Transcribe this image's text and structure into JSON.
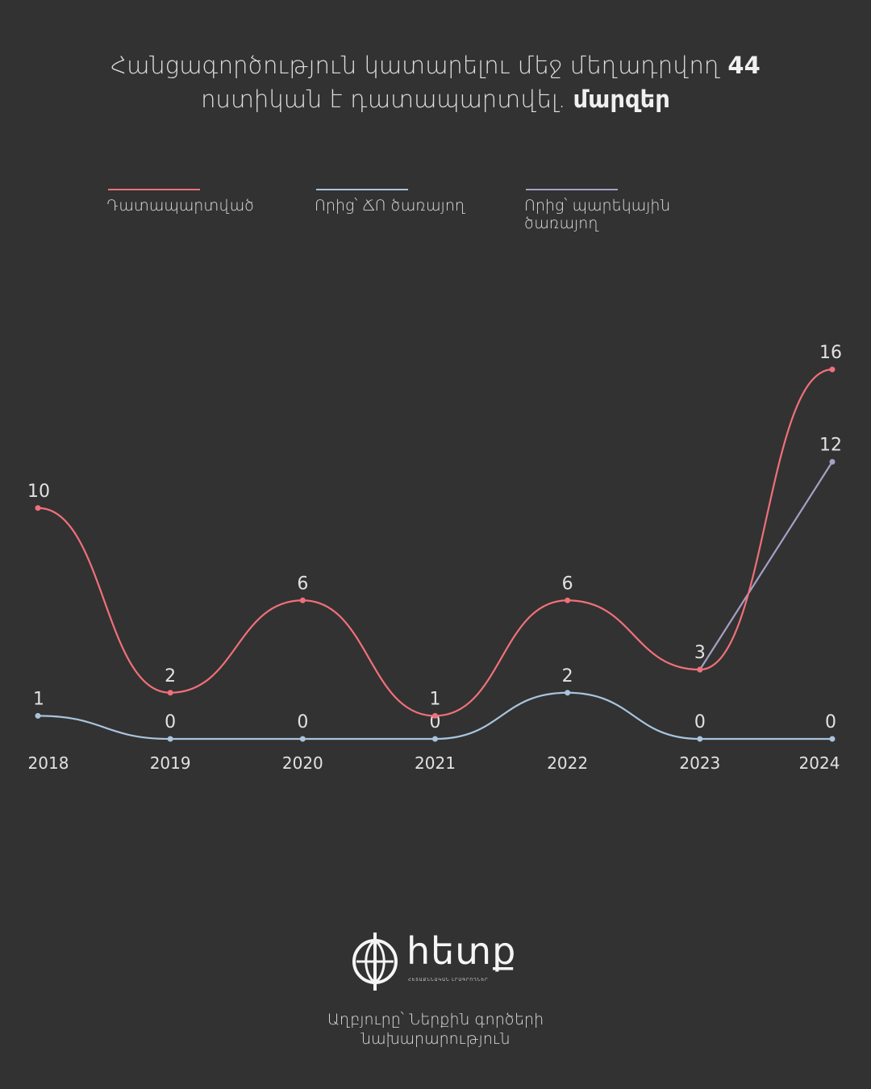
{
  "header": {
    "title_part1": "Հանցագործություն կատարելու մեջ մեղադրվող ",
    "title_bold1": "44",
    "title_part2": "ոստիկան է դատապարտվել.",
    "title_bold2": "մարզեր"
  },
  "footer": {
    "logo_text": "hետք",
    "logo_sub": "ՀԵՏԱՔՆՆԱԿԱՆ ԼՐԱԳՐՈՂՆԵՐ",
    "source_line1": "Աղբյուրը՝ Ներքին գործերի",
    "source_line2": "նախարարություն"
  },
  "chart_data": {
    "type": "line",
    "x": [
      "2018",
      "2019",
      "2020",
      "2021",
      "2022",
      "2023",
      "2024"
    ],
    "ylim": [
      0,
      16
    ],
    "series": [
      {
        "name": "Դատապարտված",
        "color": "#f0707a",
        "values": [
          10,
          2,
          6,
          1,
          6,
          3,
          16
        ]
      },
      {
        "name": "Որից՝ ՃՈ ծառայող",
        "color": "#a9c4dc",
        "values": [
          1,
          0,
          0,
          0,
          2,
          0,
          0
        ]
      },
      {
        "name": "Որից՝ պարեկային ծառայող",
        "color": "#a5a0c6",
        "values": [
          null,
          null,
          null,
          null,
          null,
          3,
          12
        ]
      }
    ]
  }
}
